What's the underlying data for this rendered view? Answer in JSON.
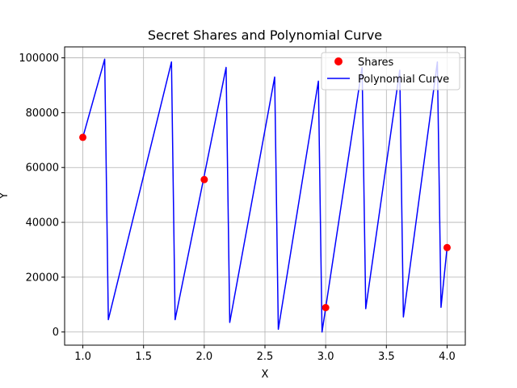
{
  "chart_data": {
    "type": "scatter",
    "title": "Secret Shares and Polynomial Curve",
    "xlabel": "X",
    "ylabel": "Y",
    "xlim": [
      0.85,
      4.15
    ],
    "ylim": [
      -4800,
      104000
    ],
    "xticks": [
      1.0,
      1.5,
      2.0,
      2.5,
      3.0,
      3.5,
      4.0
    ],
    "xtick_labels": [
      "1.0",
      "1.5",
      "2.0",
      "2.5",
      "3.0",
      "3.5",
      "4.0"
    ],
    "yticks": [
      0,
      20000,
      40000,
      60000,
      80000,
      100000
    ],
    "ytick_labels": [
      "0",
      "20000",
      "40000",
      "60000",
      "80000",
      "100000"
    ],
    "grid": true,
    "legend_position": "top-right",
    "colors": {
      "shares": "#ff0000",
      "curve": "#0000ff"
    },
    "series": [
      {
        "name": "Shares",
        "kind": "scatter",
        "x": [
          1.0,
          2.0,
          3.0,
          4.0
        ],
        "y": [
          71000,
          55600,
          8900,
          30800
        ]
      },
      {
        "name": "Polynomial Curve",
        "kind": "line",
        "x": [
          1.0,
          1.18,
          1.21,
          1.73,
          1.76,
          2.18,
          2.21,
          2.58,
          2.61,
          2.94,
          2.97,
          3.3,
          3.33,
          3.61,
          3.64,
          3.92,
          3.95,
          4.0
        ],
        "y": [
          71000,
          99500,
          4500,
          98500,
          4500,
          96500,
          3500,
          93000,
          1000,
          91500,
          0,
          96500,
          8500,
          95500,
          5500,
          98500,
          9000,
          30800
        ]
      }
    ]
  }
}
